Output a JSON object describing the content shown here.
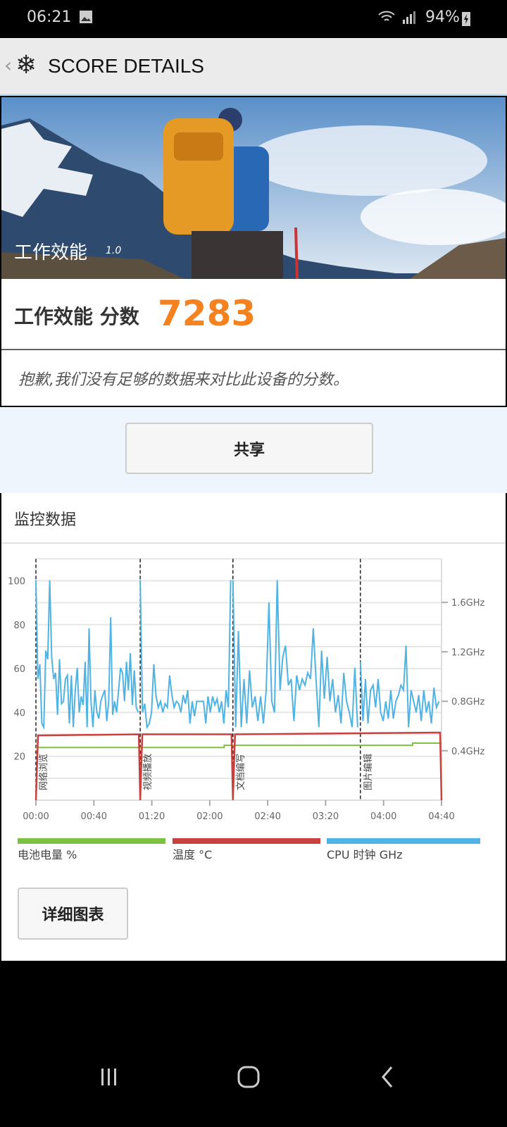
{
  "status_bar": {
    "time": "06:21",
    "battery": "94%",
    "icons": [
      "gallery-icon",
      "wifi-icon",
      "signal-icon",
      "battery-charging-icon"
    ]
  },
  "header": {
    "title": "SCORE DETAILS",
    "back_icon": "chevron-left-icon",
    "logo_icon": "snowflake-icon"
  },
  "hero": {
    "title": "工作效能",
    "version": "1.0"
  },
  "score": {
    "label": "工作效能 分数",
    "value": "7283",
    "color": "#f5821f"
  },
  "message": "抱歉,我们没有足够的数据来对比此设备的分数。",
  "share_label": "共享",
  "monitor": {
    "title": "监控数据",
    "detail_button": "详细图表"
  },
  "chart_data": {
    "type": "line",
    "x_ticks": [
      "00:00",
      "00:40",
      "01:20",
      "02:00",
      "02:40",
      "03:20",
      "04:00",
      "04:40"
    ],
    "xlim": [
      "00:00",
      "04:40"
    ],
    "left_ylim": [
      0,
      110
    ],
    "left_ticks": [
      20,
      40,
      60,
      80,
      100
    ],
    "right_ticks": [
      "0.4GHz",
      "0.8GHz",
      "1.2GHz",
      "1.6GHz"
    ],
    "right_tick_values": [
      0.4,
      0.8,
      1.2,
      1.6
    ],
    "grid": true,
    "legend_position": "bottom",
    "markers": [
      {
        "time": "00:00",
        "label": "网络浏览"
      },
      {
        "time": "01:12",
        "label": "视频播放"
      },
      {
        "time": "02:16",
        "label": "文档编写"
      },
      {
        "time": "03:44",
        "label": "图片编辑"
      }
    ],
    "series": [
      {
        "name": "电池电量 %",
        "color": "#7cc142",
        "axis": "left",
        "steps": [
          {
            "start": "00:00",
            "end": "02:10",
            "value": 24
          },
          {
            "start": "02:10",
            "end": "04:20",
            "value": 25
          },
          {
            "start": "04:20",
            "end": "04:40",
            "value": 26
          }
        ]
      },
      {
        "name": "温度 °C",
        "color": "#c8413f",
        "axis": "left",
        "segments": [
          {
            "start": "00:00",
            "end": "01:12",
            "from": 29.5,
            "to": 30
          },
          {
            "start": "01:12",
            "end": "02:16",
            "from": 30,
            "to": 30
          },
          {
            "start": "02:16",
            "end": "04:40",
            "from": 30,
            "to": 30.8
          }
        ]
      },
      {
        "name": "CPU 时钟 GHz",
        "color": "#4fb3e3",
        "axis": "right",
        "segments": [
          {
            "start": "00:00",
            "end": "01:12",
            "values": [
              1.78,
              0.98,
              1.1,
              0.62,
              0.59,
              1.21,
              1.14,
              1.78,
              1.16,
              0.98,
              1.03,
              0.69,
              1.14,
              0.78,
              0.8,
              0.98,
              1.01,
              0.62,
              1.01,
              0.59,
              0.89,
              1.07,
              0.71,
              0.84,
              0.77,
              1.12,
              0.59,
              1.39,
              0.8,
              0.59,
              0.89,
              0.71,
              0.66,
              0.8,
              0.85,
              0.89,
              0.64,
              0.8,
              1.48,
              0.69,
              0.8,
              0.71,
              0.89,
              1.07,
              1.03,
              0.8,
              1.12,
              0.89,
              1.19,
              0.77,
              1.05,
              0.75,
              0.71
            ]
          },
          {
            "start": "01:12",
            "end": "02:16",
            "values": [
              1.78,
              0.71,
              0.78,
              0.59,
              0.62,
              0.71,
              1.1,
              0.84,
              0.75,
              0.8,
              0.71,
              0.78,
              0.75,
              1.01,
              0.85,
              0.75,
              0.8,
              0.78,
              0.71,
              0.85,
              0.78,
              0.89,
              0.62,
              0.8,
              0.68,
              0.8,
              0.8,
              0.8,
              0.8,
              0.62,
              0.84,
              0.71,
              0.84,
              0.77,
              0.82,
              0.71,
              0.8,
              0.62,
              0.89,
              0.75,
              1.78
            ]
          },
          {
            "start": "02:16",
            "end": "03:44",
            "values": [
              1.78,
              0.59,
              1.37,
              0.59,
              0.98,
              0.62,
              1.05,
              0.75,
              0.84,
              0.64,
              0.84,
              0.62,
              0.89,
              1.6,
              0.8,
              0.71,
              1.78,
              0.89,
              1.16,
              1.25,
              0.93,
              0.98,
              0.64,
              1.01,
              0.89,
              0.98,
              0.93,
              1.03,
              0.98,
              1.39,
              0.98,
              0.59,
              1.21,
              0.82,
              1.16,
              0.8,
              0.98,
              0.71,
              0.85,
              0.62,
              1.03,
              0.8,
              0.71,
              0.59,
              1.07,
              0.59
            ]
          },
          {
            "start": "03:44",
            "end": "04:40",
            "values": [
              1.12,
              0.64,
              0.98,
              0.62,
              0.89,
              0.93,
              0.75,
              0.98,
              0.71,
              0.64,
              0.8,
              0.66,
              0.89,
              0.66,
              0.8,
              0.85,
              0.93,
              0.89,
              1.25,
              0.59,
              0.89,
              0.8,
              0.71,
              0.85,
              0.64,
              0.89,
              0.71,
              0.8,
              0.62,
              0.91,
              0.75,
              0.8
            ]
          }
        ]
      }
    ]
  },
  "nav_bar": {
    "icons": [
      "recent-apps-icon",
      "home-icon",
      "back-icon"
    ]
  }
}
